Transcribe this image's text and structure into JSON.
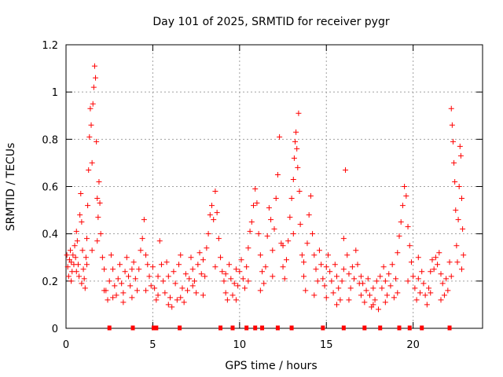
{
  "chart_data": {
    "type": "scatter",
    "title": "Day 101 of 2025, SRMTID for receiver pygr",
    "xlabel": "GPS time / hours",
    "ylabel": "SRMTID / TECUs",
    "xlim": [
      0,
      24
    ],
    "ylim": [
      0,
      1.2
    ],
    "xticks": [
      0,
      5,
      10,
      15,
      20
    ],
    "xtick_labels": [
      "0",
      "5",
      "10",
      "15",
      "20"
    ],
    "yticks": [
      0,
      0.2,
      0.4,
      0.6,
      0.8,
      1,
      1.2
    ],
    "ytick_labels": [
      "0",
      "0.2",
      "0.4",
      "0.6",
      "0.8",
      "1",
      "1.2"
    ],
    "grid": true,
    "marker": "+",
    "color": "#ff0000",
    "series": [
      {
        "name": "SRMTID",
        "points": [
          [
            0.05,
            0.31
          ],
          [
            0.1,
            0.26
          ],
          [
            0.15,
            0.22
          ],
          [
            0.2,
            0.29
          ],
          [
            0.25,
            0.33
          ],
          [
            0.3,
            0.28
          ],
          [
            0.35,
            0.24
          ],
          [
            0.4,
            0.31
          ],
          [
            0.45,
            0.27
          ],
          [
            0.5,
            0.35
          ],
          [
            0.55,
            0.3
          ],
          [
            0.6,
            0.41
          ],
          [
            0.65,
            0.37
          ],
          [
            0.7,
            0.27
          ],
          [
            0.75,
            0.22
          ],
          [
            0.8,
            0.48
          ],
          [
            0.85,
            0.57
          ],
          [
            0.9,
            0.45
          ],
          [
            0.95,
            0.33
          ],
          [
            1.0,
            0.25
          ],
          [
            1.05,
            0.21
          ],
          [
            1.1,
            0.17
          ],
          [
            1.15,
            0.3
          ],
          [
            1.2,
            0.38
          ],
          [
            1.25,
            0.52
          ],
          [
            1.3,
            0.67
          ],
          [
            1.35,
            0.81
          ],
          [
            1.4,
            0.93
          ],
          [
            1.45,
            0.86
          ],
          [
            1.5,
            0.7
          ],
          [
            1.55,
            0.95
          ],
          [
            1.6,
            1.02
          ],
          [
            1.65,
            1.11
          ],
          [
            1.7,
            1.06
          ],
          [
            1.75,
            0.79
          ],
          [
            1.8,
            0.55
          ],
          [
            1.85,
            0.47
          ],
          [
            1.9,
            0.62
          ],
          [
            1.95,
            0.53
          ],
          [
            2.0,
            0.4
          ],
          [
            2.1,
            0.3
          ],
          [
            2.2,
            0.25
          ],
          [
            2.3,
            0.16
          ],
          [
            2.4,
            0.12
          ],
          [
            2.5,
            0.2
          ],
          [
            2.6,
            0.31
          ],
          [
            2.7,
            0.25
          ],
          [
            2.8,
            0.18
          ],
          [
            2.9,
            0.14
          ],
          [
            3.0,
            0.21
          ],
          [
            3.1,
            0.27
          ],
          [
            3.2,
            0.19
          ],
          [
            3.3,
            0.15
          ],
          [
            3.4,
            0.24
          ],
          [
            3.5,
            0.3
          ],
          [
            3.6,
            0.22
          ],
          [
            3.7,
            0.18
          ],
          [
            3.8,
            0.13
          ],
          [
            3.9,
            0.28
          ],
          [
            4.0,
            0.21
          ],
          [
            4.1,
            0.16
          ],
          [
            4.2,
            0.25
          ],
          [
            4.3,
            0.33
          ],
          [
            4.4,
            0.38
          ],
          [
            4.5,
            0.46
          ],
          [
            4.6,
            0.31
          ],
          [
            4.7,
            0.27
          ],
          [
            4.8,
            0.22
          ],
          [
            4.9,
            0.18
          ],
          [
            5.0,
            0.26
          ],
          [
            5.1,
            0.17
          ],
          [
            5.2,
            0.12
          ],
          [
            5.3,
            0.22
          ],
          [
            5.4,
            0.37
          ],
          [
            5.5,
            0.27
          ],
          [
            5.6,
            0.2
          ],
          [
            5.7,
            0.15
          ],
          [
            5.8,
            0.28
          ],
          [
            5.9,
            0.22
          ],
          [
            6.0,
            0.13
          ],
          [
            6.1,
            0.09
          ],
          [
            6.2,
            0.24
          ],
          [
            6.3,
            0.19
          ],
          [
            6.4,
            0.12
          ],
          [
            6.5,
            0.27
          ],
          [
            6.6,
            0.31
          ],
          [
            6.7,
            0.17
          ],
          [
            6.8,
            0.11
          ],
          [
            6.9,
            0.23
          ],
          [
            7.0,
            0.16
          ],
          [
            7.1,
            0.21
          ],
          [
            7.2,
            0.3
          ],
          [
            7.3,
            0.25
          ],
          [
            7.4,
            0.2
          ],
          [
            7.5,
            0.15
          ],
          [
            7.6,
            0.27
          ],
          [
            7.7,
            0.32
          ],
          [
            7.8,
            0.23
          ],
          [
            7.9,
            0.29
          ],
          [
            8.0,
            0.22
          ],
          [
            8.1,
            0.34
          ],
          [
            8.2,
            0.4
          ],
          [
            8.3,
            0.48
          ],
          [
            8.4,
            0.52
          ],
          [
            8.5,
            0.46
          ],
          [
            8.6,
            0.58
          ],
          [
            8.7,
            0.49
          ],
          [
            8.8,
            0.38
          ],
          [
            8.9,
            0.3
          ],
          [
            9.0,
            0.24
          ],
          [
            9.1,
            0.2
          ],
          [
            9.2,
            0.15
          ],
          [
            9.3,
            0.12
          ],
          [
            9.4,
            0.27
          ],
          [
            9.5,
            0.21
          ],
          [
            9.6,
            0.14
          ],
          [
            9.7,
            0.19
          ],
          [
            9.8,
            0.25
          ],
          [
            9.9,
            0.18
          ],
          [
            10.0,
            0.24
          ],
          [
            10.1,
            0.29
          ],
          [
            10.2,
            0.21
          ],
          [
            10.3,
            0.17
          ],
          [
            10.4,
            0.26
          ],
          [
            10.5,
            0.34
          ],
          [
            10.6,
            0.41
          ],
          [
            10.7,
            0.45
          ],
          [
            10.8,
            0.52
          ],
          [
            10.9,
            0.59
          ],
          [
            11.0,
            0.53
          ],
          [
            11.1,
            0.4
          ],
          [
            11.2,
            0.31
          ],
          [
            11.3,
            0.24
          ],
          [
            11.4,
            0.19
          ],
          [
            11.5,
            0.26
          ],
          [
            11.6,
            0.39
          ],
          [
            11.7,
            0.51
          ],
          [
            11.8,
            0.46
          ],
          [
            11.9,
            0.33
          ],
          [
            12.0,
            0.42
          ],
          [
            12.1,
            0.55
          ],
          [
            12.2,
            0.65
          ],
          [
            12.3,
            0.81
          ],
          [
            12.4,
            0.36
          ],
          [
            12.5,
            0.26
          ],
          [
            12.6,
            0.21
          ],
          [
            12.7,
            0.29
          ],
          [
            12.8,
            0.37
          ],
          [
            12.9,
            0.47
          ],
          [
            13.0,
            0.55
          ],
          [
            13.1,
            0.63
          ],
          [
            13.15,
            0.72
          ],
          [
            13.2,
            0.79
          ],
          [
            13.25,
            0.83
          ],
          [
            13.3,
            0.76
          ],
          [
            13.35,
            0.68
          ],
          [
            13.4,
            0.91
          ],
          [
            13.45,
            0.58
          ],
          [
            13.5,
            0.44
          ],
          [
            13.6,
            0.31
          ],
          [
            13.7,
            0.22
          ],
          [
            13.8,
            0.16
          ],
          [
            13.9,
            0.36
          ],
          [
            14.0,
            0.48
          ],
          [
            14.1,
            0.56
          ],
          [
            14.2,
            0.4
          ],
          [
            14.3,
            0.31
          ],
          [
            14.4,
            0.25
          ],
          [
            14.5,
            0.2
          ],
          [
            14.6,
            0.33
          ],
          [
            14.7,
            0.27
          ],
          [
            14.8,
            0.21
          ],
          [
            14.9,
            0.18
          ],
          [
            15.0,
            0.26
          ],
          [
            15.1,
            0.31
          ],
          [
            15.2,
            0.24
          ],
          [
            15.3,
            0.2
          ],
          [
            15.4,
            0.15
          ],
          [
            15.5,
            0.27
          ],
          [
            15.6,
            0.22
          ],
          [
            15.7,
            0.17
          ],
          [
            15.8,
            0.12
          ],
          [
            15.9,
            0.2
          ],
          [
            16.0,
            0.25
          ],
          [
            16.1,
            0.67
          ],
          [
            16.2,
            0.31
          ],
          [
            16.3,
            0.23
          ],
          [
            16.4,
            0.17
          ],
          [
            16.5,
            0.26
          ],
          [
            16.6,
            0.21
          ],
          [
            16.7,
            0.33
          ],
          [
            16.8,
            0.27
          ],
          [
            16.9,
            0.19
          ],
          [
            17.0,
            0.14
          ],
          [
            17.1,
            0.19
          ],
          [
            17.2,
            0.11
          ],
          [
            17.3,
            0.16
          ],
          [
            17.4,
            0.21
          ],
          [
            17.5,
            0.14
          ],
          [
            17.6,
            0.09
          ],
          [
            17.7,
            0.17
          ],
          [
            17.8,
            0.12
          ],
          [
            17.9,
            0.2
          ],
          [
            18.0,
            0.08
          ],
          [
            18.1,
            0.22
          ],
          [
            18.2,
            0.17
          ],
          [
            18.3,
            0.26
          ],
          [
            18.4,
            0.2
          ],
          [
            18.5,
            0.14
          ],
          [
            18.6,
            0.23
          ],
          [
            18.7,
            0.18
          ],
          [
            18.8,
            0.27
          ],
          [
            18.9,
            0.13
          ],
          [
            19.0,
            0.21
          ],
          [
            19.1,
            0.32
          ],
          [
            19.2,
            0.39
          ],
          [
            19.3,
            0.45
          ],
          [
            19.4,
            0.52
          ],
          [
            19.5,
            0.6
          ],
          [
            19.6,
            0.56
          ],
          [
            19.7,
            0.43
          ],
          [
            19.8,
            0.35
          ],
          [
            19.9,
            0.28
          ],
          [
            20.0,
            0.22
          ],
          [
            20.1,
            0.17
          ],
          [
            20.2,
            0.12
          ],
          [
            20.3,
            0.21
          ],
          [
            20.4,
            0.15
          ],
          [
            20.5,
            0.24
          ],
          [
            20.6,
            0.19
          ],
          [
            20.7,
            0.14
          ],
          [
            20.8,
            0.1
          ],
          [
            20.9,
            0.17
          ],
          [
            21.0,
            0.24
          ],
          [
            21.1,
            0.29
          ],
          [
            21.2,
            0.25
          ],
          [
            21.3,
            0.3
          ],
          [
            21.4,
            0.27
          ],
          [
            21.5,
            0.32
          ],
          [
            21.6,
            0.23
          ],
          [
            21.7,
            0.19
          ],
          [
            21.8,
            0.14
          ],
          [
            21.9,
            0.21
          ],
          [
            22.0,
            0.16
          ],
          [
            22.1,
            0.28
          ],
          [
            22.2,
            0.93
          ],
          [
            22.25,
            0.86
          ],
          [
            22.3,
            0.79
          ],
          [
            22.35,
            0.7
          ],
          [
            22.4,
            0.62
          ],
          [
            22.45,
            0.5
          ],
          [
            22.5,
            0.35
          ],
          [
            22.55,
            0.28
          ],
          [
            22.6,
            0.46
          ],
          [
            22.65,
            0.6
          ],
          [
            22.7,
            0.77
          ],
          [
            22.75,
            0.73
          ],
          [
            22.8,
            0.55
          ],
          [
            22.85,
            0.42
          ],
          [
            22.9,
            0.31
          ],
          [
            0.3,
            0.2
          ],
          [
            0.6,
            0.24
          ],
          [
            0.9,
            0.19
          ],
          [
            1.2,
            0.27
          ],
          [
            1.5,
            0.33
          ],
          [
            1.8,
            0.37
          ],
          [
            2.2,
            0.16
          ],
          [
            2.7,
            0.13
          ],
          [
            3.3,
            0.11
          ],
          [
            3.8,
            0.25
          ],
          [
            4.6,
            0.16
          ],
          [
            5.3,
            0.14
          ],
          [
            5.9,
            0.1
          ],
          [
            6.6,
            0.13
          ],
          [
            7.3,
            0.18
          ],
          [
            7.9,
            0.14
          ],
          [
            8.6,
            0.26
          ],
          [
            9.2,
            0.23
          ],
          [
            9.8,
            0.12
          ],
          [
            10.5,
            0.2
          ],
          [
            11.2,
            0.16
          ],
          [
            11.9,
            0.22
          ],
          [
            12.5,
            0.35
          ],
          [
            13.1,
            0.4
          ],
          [
            13.7,
            0.28
          ],
          [
            14.3,
            0.14
          ],
          [
            15.0,
            0.13
          ],
          [
            15.6,
            0.1
          ],
          [
            16.3,
            0.12
          ],
          [
            17.0,
            0.22
          ],
          [
            17.7,
            0.1
          ],
          [
            18.4,
            0.11
          ],
          [
            19.1,
            0.15
          ],
          [
            19.7,
            0.2
          ],
          [
            20.3,
            0.3
          ],
          [
            21.0,
            0.15
          ],
          [
            21.6,
            0.12
          ],
          [
            22.2,
            0.22
          ],
          [
            22.8,
            0.25
          ],
          [
            16.0,
            0.38
          ]
        ]
      }
    ],
    "zero_markers_x": [
      2.5,
      3.85,
      5.05,
      5.2,
      6.55,
      8.9,
      9.6,
      10.4,
      10.9,
      11.3,
      12.2,
      13.0,
      14.8,
      16.0,
      17.2,
      18.1,
      19.2,
      19.8,
      20.5,
      22.1
    ]
  }
}
